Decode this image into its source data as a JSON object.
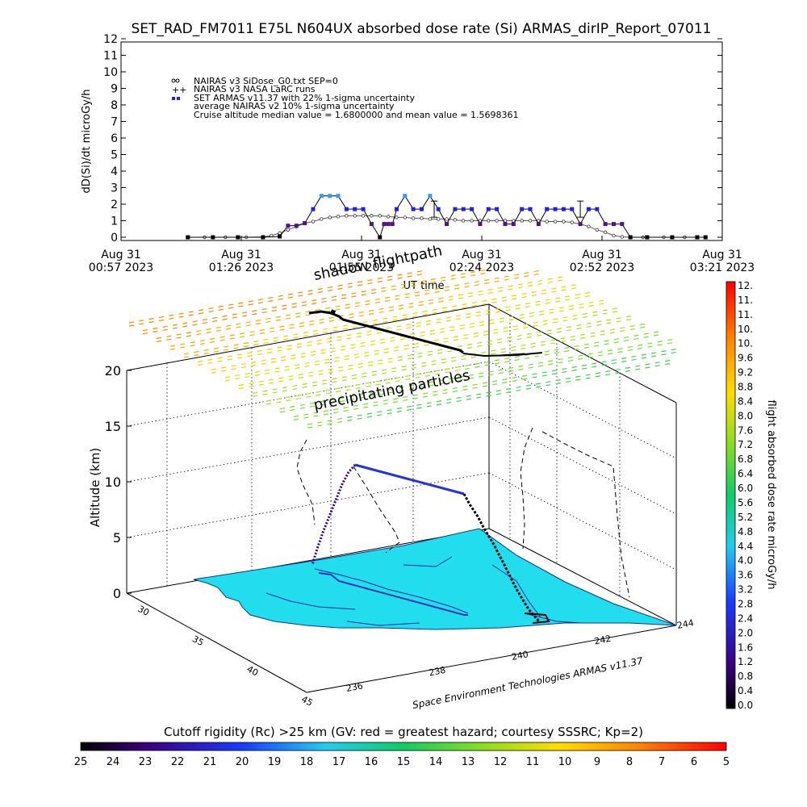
{
  "page_title": "SET_RAD_FM7011   E75L N604UX absorbed dose rate (Si) ARMAS_dirIP_Report_07011",
  "chart_data": [
    {
      "type": "line",
      "ylabel": "dD(Si)/dt microGy/h",
      "xlabel": "UT time",
      "ylim": [
        0,
        12
      ],
      "yticks": [
        0,
        1,
        2,
        3,
        4,
        5,
        6,
        7,
        8,
        9,
        10,
        11,
        12
      ],
      "xtick_labels": [
        [
          "Aug 31",
          "00:57 2023"
        ],
        [
          "Aug 31",
          "01:26 2023"
        ],
        [
          "Aug 31",
          "01:55 2023"
        ],
        [
          "Aug 31",
          "02:24 2023"
        ],
        [
          "Aug 31",
          "02:52 2023"
        ],
        [
          "Aug 31",
          "03:21 2023"
        ]
      ],
      "xlim_minutes": [
        0,
        144
      ],
      "legend": [
        "NAIRAS v3 SiDose_G0.txt SEP=0",
        "NAIRAS v3 NASA LaRC runs",
        "SET ARMAS v11.37 with 22% 1-sigma uncertainty",
        "average NAIRAS v2 10% 1-sigma uncertainty",
        "Cruise altitude median value = 1.6800000 and mean value = 1.5698361"
      ],
      "series": [
        {
          "name": "NAIRAS v3 SiDose_G0.txt SEP=0",
          "x": [
            16,
            20,
            25,
            30,
            34,
            36,
            38,
            40,
            42,
            44,
            46,
            48,
            50,
            52,
            54,
            56,
            58,
            60,
            62,
            64,
            66,
            68,
            70,
            72,
            74,
            76,
            78,
            80,
            82,
            84,
            86,
            88,
            90,
            92,
            94,
            96,
            98,
            100,
            102,
            104,
            106,
            108,
            110,
            112,
            114,
            116,
            118,
            120,
            122,
            125,
            130,
            135,
            140
          ],
          "y": [
            0,
            0,
            0,
            0,
            0.02,
            0.1,
            0.25,
            0.45,
            0.65,
            0.85,
            0.95,
            1.1,
            1.2,
            1.25,
            1.3,
            1.3,
            1.3,
            1.3,
            1.3,
            1.25,
            1.2,
            1.2,
            1.15,
            1.15,
            1.1,
            1.1,
            1.1,
            1.05,
            1.0,
            1.0,
            1.0,
            1.0,
            1.0,
            1.0,
            1.0,
            1.0,
            1.0,
            1.0,
            0.95,
            0.95,
            0.95,
            0.9,
            0.8,
            0.65,
            0.45,
            0.3,
            0.1,
            0.02,
            0,
            0,
            0,
            0,
            0
          ]
        },
        {
          "name": "SET ARMAS v11.37 with 22% 1-sigma uncertainty",
          "x": [
            16,
            22,
            28,
            34,
            38,
            40,
            42,
            44,
            46,
            48,
            50,
            52,
            54,
            56,
            58,
            60,
            62,
            63,
            64,
            65,
            66,
            68,
            70,
            72,
            74,
            76,
            78,
            80,
            82,
            84,
            86,
            88,
            90,
            92,
            94,
            96,
            98,
            100,
            102,
            104,
            106,
            108,
            110,
            112,
            114,
            116,
            118,
            120,
            122,
            126,
            132,
            138,
            140
          ],
          "y": [
            0,
            0,
            0,
            0,
            0.05,
            0.7,
            0.7,
            0.85,
            1.7,
            2.5,
            2.5,
            2.5,
            1.7,
            1.7,
            1.7,
            0.8,
            0,
            0.8,
            0.8,
            0.8,
            1.7,
            2.5,
            1.7,
            1.7,
            2.5,
            1.7,
            0.8,
            1.7,
            1.7,
            1.7,
            0.8,
            1.7,
            1.7,
            0.8,
            0.8,
            1.7,
            1.7,
            0.8,
            1.7,
            1.7,
            1.7,
            1.7,
            0.8,
            1.7,
            1.7,
            0.8,
            0.8,
            0.8,
            0,
            0,
            0,
            0,
            0
          ]
        }
      ]
    },
    {
      "type": "scatter",
      "title": "shadow flightpath",
      "annotation": "precipitating particles",
      "zlabel": "Altitude (km)",
      "zticks": [
        0,
        5,
        10,
        15,
        20
      ],
      "lat_ticks": [
        "30",
        "35",
        "40",
        "45"
      ],
      "lon_ticks": [
        "236",
        "238",
        "240",
        "242",
        "244"
      ],
      "credit": "Space Environment Technologies ARMAS v11.37",
      "colorbar_label": "flight absorbed dose rate microGy/h",
      "colorbar_ticks": [
        "12.",
        "11.",
        "11.",
        "10.",
        "10.",
        "9.6",
        "9.2",
        "8.8",
        "8.4",
        "8.0",
        "7.6",
        "7.2",
        "6.8",
        "6.4",
        "6.0",
        "5.6",
        "5.2",
        "4.8",
        "4.4",
        "4.0",
        "3.6",
        "3.2",
        "2.8",
        "2.4",
        "2.0",
        "1.6",
        "1.2",
        "0.8",
        "0.4",
        "0.0"
      ]
    },
    {
      "type": "heatmap",
      "title": "Cutoff rigidity (Rc) >25 km (GV: red = greatest hazard; courtesy SSSRC; Kp=2)",
      "colorbar_ticks": [
        "25",
        "24",
        "23",
        "22",
        "21",
        "20",
        "19",
        "18",
        "17",
        "16",
        "15",
        "14",
        "13",
        "12",
        "11",
        "10",
        "9",
        "8",
        "7",
        "6",
        "5"
      ]
    }
  ],
  "colors": {
    "armas": "#2222dd",
    "armas_high": "#3399ff",
    "nairas": "#444444",
    "ground": "#22ddee"
  }
}
